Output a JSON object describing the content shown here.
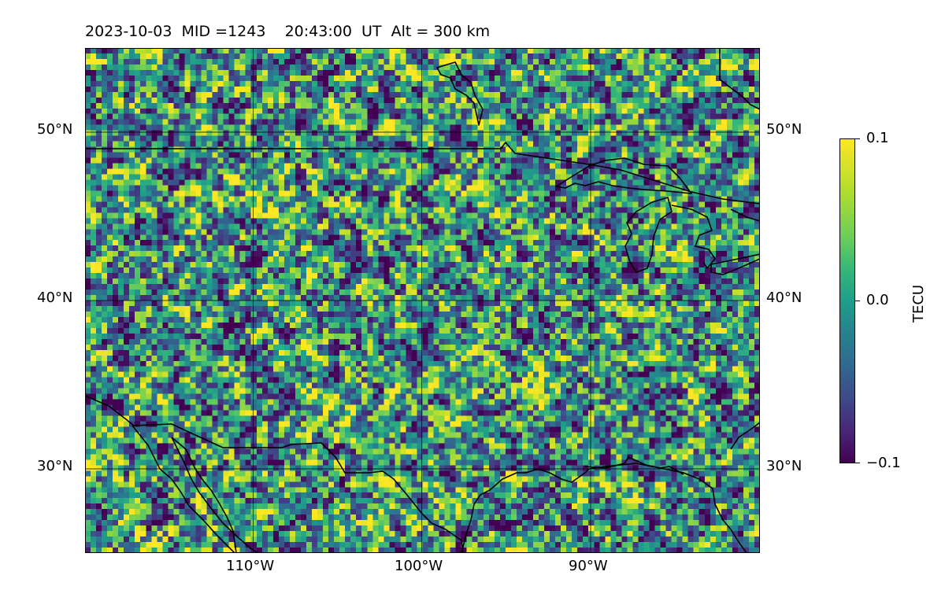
{
  "header": {
    "title": "2023-10-03  MID =1243    20:43:00  UT  Alt = 300 km"
  },
  "map": {
    "projection": "plate-carree",
    "extent_lon": [
      -120,
      -80
    ],
    "extent_lat": [
      25,
      55
    ],
    "lat_labels": [
      "50°N",
      "40°N",
      "30°N"
    ],
    "lon_labels": [
      "110°W",
      "100°W",
      "90°W"
    ],
    "gridlines": true,
    "coastline_color": "#000000",
    "field_variable": "TEC perturbation",
    "field_range": [
      -0.1,
      0.1
    ],
    "colormap": "viridis"
  },
  "colorbar": {
    "label": "TECU",
    "ticks": [
      "0.1",
      "0.0",
      "−0.1"
    ]
  }
}
